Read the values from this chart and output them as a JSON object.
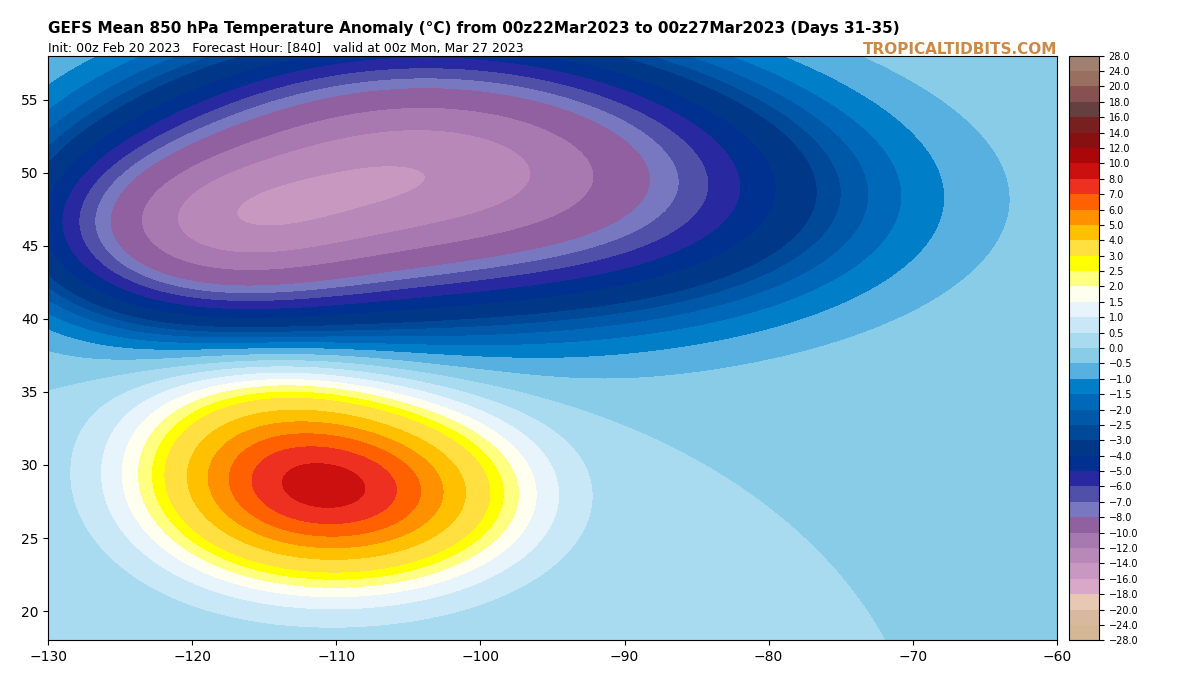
{
  "title": "GEFS Mean 850 hPa Temperature Anomaly (°C) from 00z22Mar2023 to 00z27Mar2023 (Days 31-35)",
  "subtitle": "Init: 00z Feb 20 2023   Forecast Hour: [840]   valid at 00z Mon, Mar 27 2023",
  "watermark": "TROPICALTIDBITS.COM",
  "lon_min": -130,
  "lon_max": -60,
  "lat_min": 18,
  "lat_max": 58,
  "colorbar_levels": [
    -28,
    -24,
    -20,
    -18,
    -16,
    -14,
    -12,
    -10,
    -8,
    -7,
    -6,
    -5,
    -4,
    -3,
    -2.5,
    -2,
    -1.5,
    -1,
    -0.5,
    0,
    0.5,
    1,
    1.5,
    2,
    2.5,
    3,
    4,
    5,
    6,
    7,
    8,
    10,
    12,
    14,
    16,
    18,
    20,
    24,
    28
  ],
  "colorbar_colors": [
    "#d4b896",
    "#d9b8a0",
    "#e8c8b4",
    "#d9a8c8",
    "#c898c0",
    "#b888b8",
    "#a878b0",
    "#9060a0",
    "#7878c0",
    "#5050a8",
    "#2828a0",
    "#003090",
    "#003888",
    "#004898",
    "#0058a8",
    "#0068b8",
    "#007ec8",
    "#58b0e0",
    "#88cce8",
    "#a8daf0",
    "#c8e8f8",
    "#e8f4fc",
    "#fffff0",
    "#ffff80",
    "#ffff00",
    "#ffe040",
    "#ffc000",
    "#ff9000",
    "#ff6000",
    "#ee3020",
    "#cc1010",
    "#aa0808",
    "#881010",
    "#772020",
    "#664040",
    "#885050",
    "#997060",
    "#a08070"
  ],
  "background_color": "#ffffff",
  "map_background": "#c8e8f8"
}
